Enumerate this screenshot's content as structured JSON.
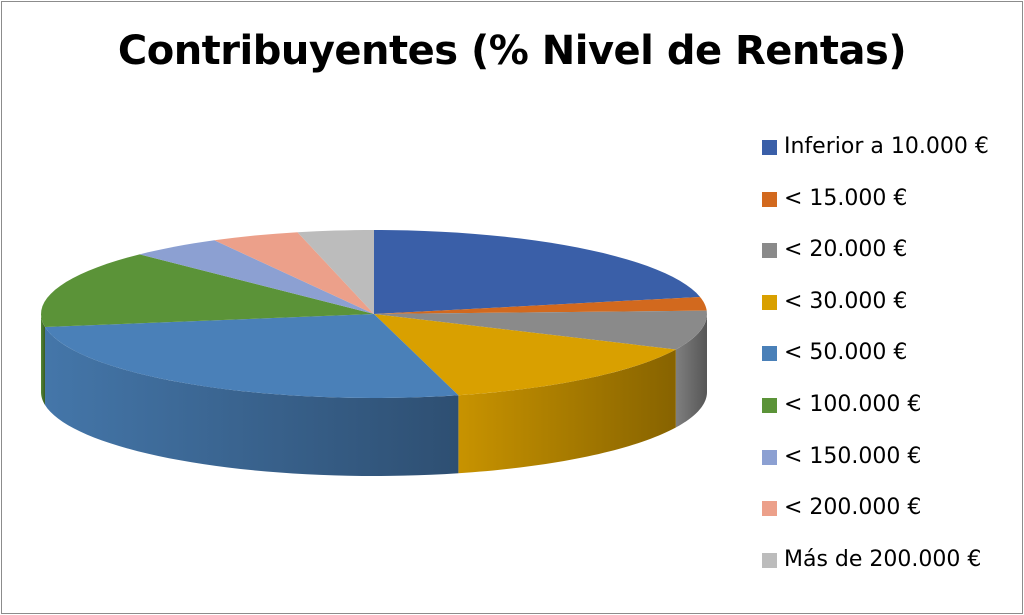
{
  "chart_data": {
    "type": "pie",
    "title": "Contribuyentes (% Nivel de Rentas)",
    "three_d": true,
    "legend_position": "right",
    "categories": [
      "Inferior a 10.000 €",
      "< 15.000 €",
      "< 20.000 €",
      "< 30.000 €",
      "< 50.000 €",
      "< 100.000 €",
      "< 150.000 €",
      "< 200.000 €",
      "Más de 200.000 €"
    ],
    "values": [
      22.4,
      2.7,
      7.8,
      14.4,
      27.4,
      15.5,
      4.6,
      4.4,
      3.8
    ],
    "colors": [
      "#3a5fa8",
      "#d2691e",
      "#8a8a8a",
      "#d9a000",
      "#4a80b8",
      "#5b9338",
      "#8ca0d2",
      "#eca08a",
      "#bcbcbc"
    ]
  }
}
